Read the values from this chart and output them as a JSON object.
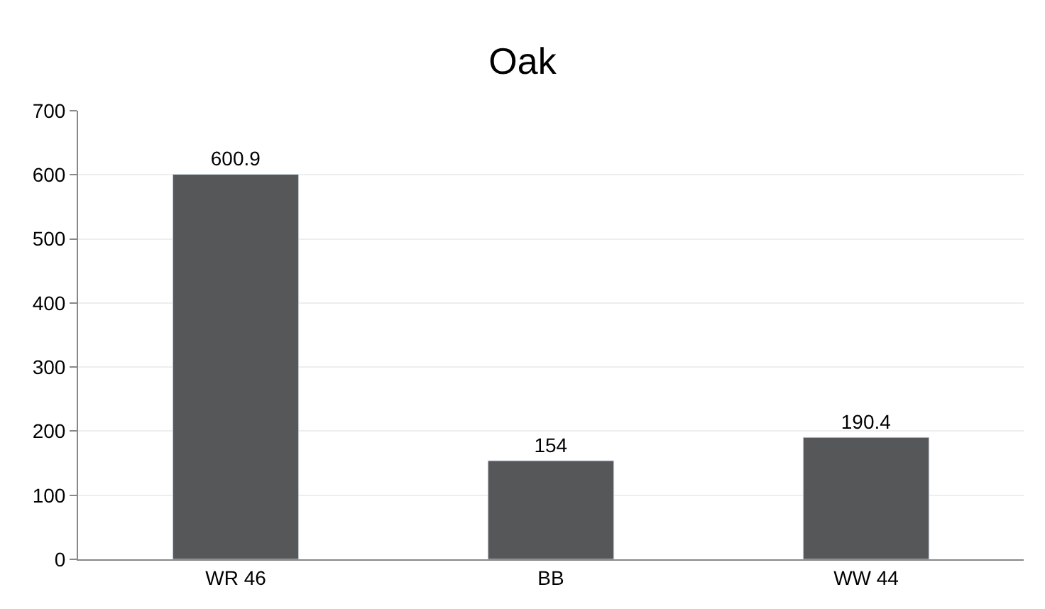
{
  "chart_data": {
    "type": "bar",
    "title": "Oak",
    "categories": [
      "WR 46",
      "BB",
      "WW 44"
    ],
    "values": [
      600.9,
      154,
      190.4
    ],
    "color": "#555759",
    "ylim": [
      0,
      700
    ],
    "yticks": [
      0,
      100,
      200,
      300,
      400,
      500,
      600,
      700
    ],
    "grid": "y",
    "data_labels": true
  }
}
